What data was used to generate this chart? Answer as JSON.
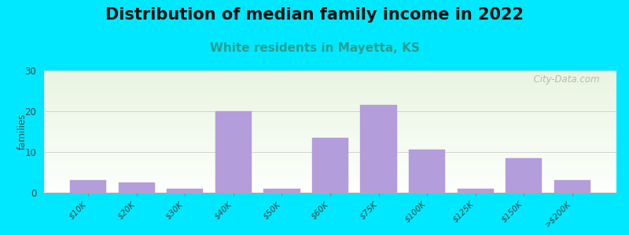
{
  "title": "Distribution of median family income in 2022",
  "subtitle": "White residents in Mayetta, KS",
  "categories": [
    "$10K",
    "$20K",
    "$30K",
    "$40K",
    "$50K",
    "$60K",
    "$75K",
    "$100K",
    "$125K",
    "$150K",
    ">$200K"
  ],
  "values": [
    3,
    2.5,
    1,
    20,
    1,
    13.5,
    21.5,
    10.5,
    1,
    8.5,
    3
  ],
  "bar_color": "#b39ddb",
  "ylabel": "families",
  "ylim": [
    0,
    30
  ],
  "yticks": [
    0,
    10,
    20,
    30
  ],
  "background_outer": "#00e8ff",
  "grid_color": "#cccccc",
  "title_fontsize": 15,
  "subtitle_fontsize": 11,
  "subtitle_color": "#2a9d8f",
  "watermark": "  City-Data.com",
  "watermark_color": "#aaaaaa",
  "bg_top": "#e8f5e2",
  "bg_bottom": "#f8fff8"
}
